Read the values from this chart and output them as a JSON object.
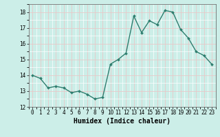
{
  "x": [
    0,
    1,
    2,
    3,
    4,
    5,
    6,
    7,
    8,
    9,
    10,
    11,
    12,
    13,
    14,
    15,
    16,
    17,
    18,
    19,
    20,
    21,
    22,
    23
  ],
  "y": [
    14.0,
    13.8,
    13.2,
    13.3,
    13.2,
    12.9,
    13.0,
    12.8,
    12.5,
    12.6,
    14.7,
    15.0,
    15.4,
    17.75,
    16.7,
    17.45,
    17.2,
    18.1,
    18.0,
    16.9,
    16.35,
    15.5,
    15.25,
    14.7
  ],
  "line_color": "#2e7d6e",
  "marker": "D",
  "marker_size": 2.0,
  "linewidth": 1.0,
  "xlabel": "Humidex (Indice chaleur)",
  "xlabel_fontsize": 7,
  "ylim": [
    12,
    18.5
  ],
  "xlim": [
    -0.5,
    23.5
  ],
  "yticks": [
    12,
    13,
    14,
    15,
    16,
    17,
    18
  ],
  "xticks": [
    0,
    1,
    2,
    3,
    4,
    5,
    6,
    7,
    8,
    9,
    10,
    11,
    12,
    13,
    14,
    15,
    16,
    17,
    18,
    19,
    20,
    21,
    22,
    23
  ],
  "bg_color": "#cceee8",
  "grid_major_color": "#e8c8c8",
  "grid_minor_color": "#ffffff",
  "tick_fontsize": 5.5,
  "spine_color": "#555555"
}
